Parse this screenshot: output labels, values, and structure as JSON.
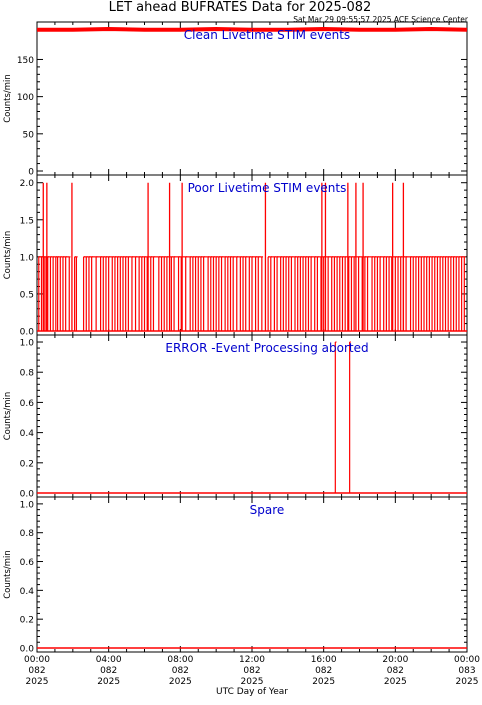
{
  "header": {
    "title": "LET ahead BUFRATES Data for 2025-082",
    "timestamp": "Sat Mar 29 09:55:57 2025 ACE Science Center"
  },
  "colors": {
    "data": "#ff0000",
    "panel_title": "#0000cc",
    "axes": "#000000",
    "background": "#ffffff"
  },
  "xaxis": {
    "label": "UTC Day of Year",
    "ticks": [
      {
        "time": "00:00",
        "doy": "082",
        "year": "2025"
      },
      {
        "time": "04:00",
        "doy": "082",
        "year": "2025"
      },
      {
        "time": "08:00",
        "doy": "082",
        "year": "2025"
      },
      {
        "time": "12:00",
        "doy": "082",
        "year": "2025"
      },
      {
        "time": "16:00",
        "doy": "082",
        "year": "2025"
      },
      {
        "time": "20:00",
        "doy": "082",
        "year": "2025"
      },
      {
        "time": "00:00",
        "doy": "083",
        "year": "2025"
      }
    ]
  },
  "chart_data": [
    {
      "type": "line",
      "title": "Clean Livetime STIM events",
      "ylabel": "Counts/min",
      "ylim": [
        0,
        195
      ],
      "yticks": [
        "0",
        "50",
        "100",
        "150"
      ],
      "xlim_hours": [
        0,
        24
      ],
      "series": [
        {
          "values_description": "near-constant ~190 counts/min all day",
          "x_hours": [
            0.0,
            2.0,
            4.0,
            6.0,
            8.0,
            10.0,
            12.0,
            14.0,
            16.0,
            18.0,
            20.0,
            22.0,
            24.0
          ],
          "y": [
            190,
            190,
            191,
            190,
            190,
            191,
            190,
            190,
            191,
            190,
            190,
            191,
            190
          ]
        }
      ]
    },
    {
      "type": "line",
      "title": "Poor Livetime STIM events",
      "ylabel": "Counts/min",
      "ylim": [
        0,
        2.05
      ],
      "yticks": [
        "0.0",
        "0.5",
        "1.0",
        "1.5",
        "2.0"
      ],
      "xlim_hours": [
        0,
        24
      ],
      "spikes_1_hours": [
        0.1,
        0.25,
        0.4,
        0.5,
        0.6,
        0.75,
        0.9,
        1.05,
        1.15,
        1.3,
        1.45,
        1.6,
        1.8,
        2.1,
        2.2,
        2.6,
        2.75,
        2.9,
        3.05,
        3.3,
        3.55,
        3.7,
        3.85,
        4.0,
        4.2,
        4.35,
        4.5,
        4.65,
        4.8,
        4.95,
        5.1,
        5.3,
        5.5,
        5.7,
        5.85,
        6.0,
        6.15,
        6.35,
        6.5,
        6.8,
        6.95,
        7.1,
        7.25,
        7.5,
        7.65,
        7.9,
        8.05,
        8.3,
        8.55,
        8.7,
        8.85,
        9.0,
        9.15,
        9.3,
        9.55,
        9.7,
        9.85,
        10.0,
        10.15,
        10.3,
        10.5,
        10.65,
        10.8,
        10.95,
        11.15,
        11.35,
        11.5,
        11.65,
        11.85,
        12.0,
        12.2,
        12.35,
        12.55,
        12.9,
        13.05,
        13.25,
        13.4,
        13.6,
        13.75,
        13.9,
        14.05,
        14.2,
        14.4,
        14.55,
        14.7,
        14.85,
        15.0,
        15.15,
        15.3,
        15.5,
        15.65,
        15.85,
        16.0,
        16.25,
        16.45,
        16.6,
        16.75,
        16.9,
        17.05,
        17.2,
        17.4,
        17.55,
        17.7,
        17.95,
        18.15,
        18.3,
        18.45,
        18.7,
        18.85,
        19.0,
        19.15,
        19.35,
        19.5,
        19.65,
        19.8,
        20.0,
        20.15,
        20.3,
        20.45,
        20.6,
        20.85,
        21.0,
        21.15,
        21.3,
        21.45,
        21.6,
        21.75,
        21.9,
        22.05,
        22.2,
        22.35,
        22.5,
        22.65,
        22.8,
        22.95,
        23.1,
        23.25,
        23.4,
        23.55,
        23.7,
        23.85
      ],
      "spikes_2_hours": [
        0.35,
        0.55,
        1.95,
        6.2,
        7.4,
        8.1,
        12.75,
        15.9,
        16.1,
        17.35,
        17.8,
        18.2,
        19.85,
        20.45
      ]
    },
    {
      "type": "line",
      "title": "ERROR -Event Processing aborted",
      "ylabel": "Counts/min",
      "ylim": [
        0,
        1.02
      ],
      "yticks": [
        "0.0",
        "0.2",
        "0.4",
        "0.6",
        "0.8",
        "1.0"
      ],
      "xlim_hours": [
        0,
        24
      ],
      "spikes_1_hours": [
        16.65,
        17.45
      ]
    },
    {
      "type": "line",
      "title": "Spare",
      "ylabel": "Counts/min",
      "ylim": [
        0,
        1.02
      ],
      "yticks": [
        "0.0",
        "0.2",
        "0.4",
        "0.6",
        "0.8",
        "1.0"
      ],
      "xlim_hours": [
        0,
        24
      ],
      "constant_value": 0
    }
  ]
}
